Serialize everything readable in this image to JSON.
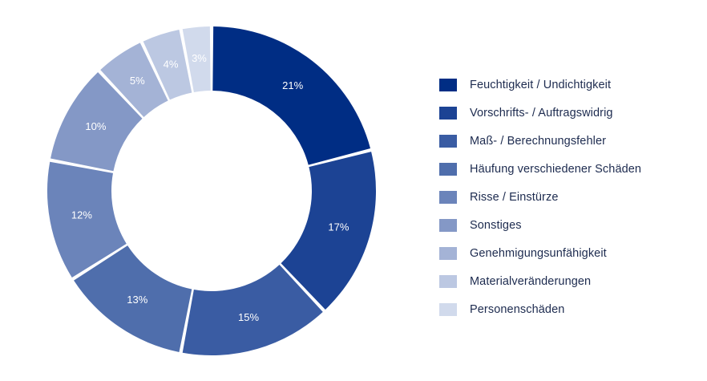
{
  "chart_data": {
    "type": "pie",
    "categories": [
      "Feuchtigkeit / Undichtigkeit",
      "Vorschrifts- / Auftragswidrig",
      "Maß- / Berechnungsfehler",
      "Häufung verschiedener Schäden",
      "Risse / Einstürze",
      "Sonstiges",
      "Genehmigungsunfähigkeit",
      "Materialveränderungen",
      "Personenschäden"
    ],
    "values": [
      21,
      17,
      15,
      13,
      12,
      10,
      5,
      4,
      3
    ],
    "labels": [
      "21%",
      "17%",
      "15%",
      "13%",
      "12%",
      "10%",
      "5%",
      "4%",
      "3%"
    ],
    "colors": [
      "#002d84",
      "#1c4394",
      "#3a5ca3",
      "#4f6eac",
      "#6b84ba",
      "#8498c6",
      "#a4b3d6",
      "#bcc8e2",
      "#d1daec"
    ],
    "label_colors": [
      "#ffffff",
      "#ffffff",
      "#ffffff",
      "#ffffff",
      "#ffffff",
      "#ffffff",
      "#ffffff",
      "#ffffff",
      "#ffffff"
    ],
    "donut": true,
    "start": "top",
    "direction": "clockwise",
    "legend_position": "right",
    "title": "",
    "xlabel": "",
    "ylabel": ""
  }
}
